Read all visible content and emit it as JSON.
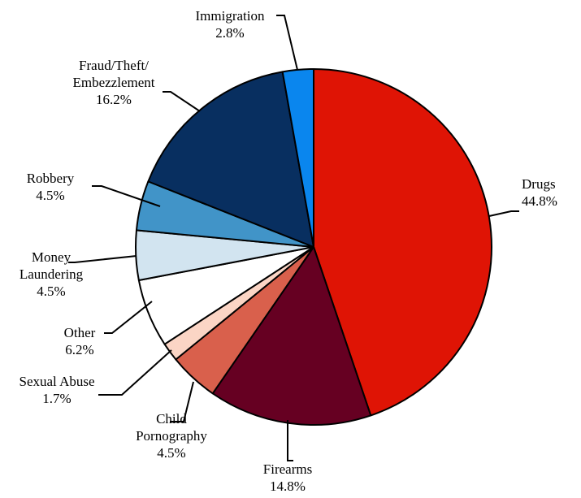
{
  "chart_data": {
    "type": "pie",
    "title": "",
    "start_angle": "12 o'clock",
    "direction": "clockwise",
    "slices": [
      {
        "label_lines": [
          "Drugs"
        ],
        "pct_label": "44.8%",
        "value": 44.8,
        "color": "#df1405"
      },
      {
        "label_lines": [
          "Firearms"
        ],
        "pct_label": "14.8%",
        "value": 14.8,
        "color": "#660022"
      },
      {
        "label_lines": [
          "Child",
          "Pornography"
        ],
        "pct_label": "4.5%",
        "value": 4.5,
        "color": "#d9604c"
      },
      {
        "label_lines": [
          "Sexual Abuse"
        ],
        "pct_label": "1.7%",
        "value": 1.7,
        "color": "#fbd5c5"
      },
      {
        "label_lines": [
          "Other"
        ],
        "pct_label": "6.2%",
        "value": 6.2,
        "color": "#ffffff"
      },
      {
        "label_lines": [
          "Money",
          "Laundering"
        ],
        "pct_label": "4.5%",
        "value": 4.5,
        "color": "#d2e4f0"
      },
      {
        "label_lines": [
          "Robbery"
        ],
        "pct_label": "4.5%",
        "value": 4.5,
        "color": "#4194c8"
      },
      {
        "label_lines": [
          "Fraud/Theft/",
          "Embezzlement"
        ],
        "pct_label": "16.2%",
        "value": 16.2,
        "color": "#082f60"
      },
      {
        "label_lines": [
          "Immigration"
        ],
        "pct_label": "2.8%",
        "value": 2.8,
        "color": "#0a86ee"
      }
    ]
  }
}
